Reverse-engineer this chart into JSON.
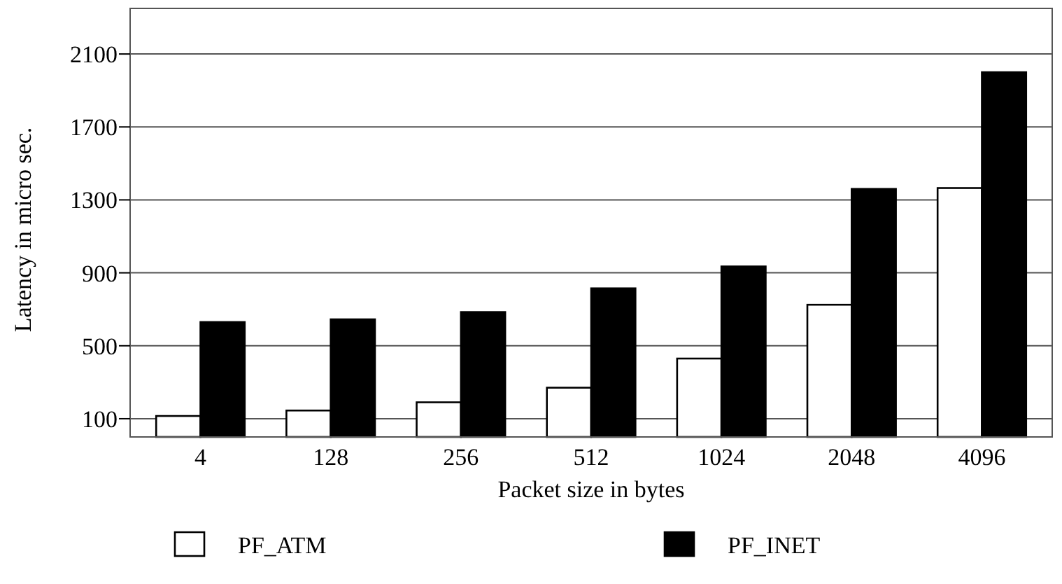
{
  "chart_data": {
    "type": "bar",
    "xlabel": "Packet  size in bytes",
    "ylabel": "Latency in micro sec.",
    "categories": [
      "4",
      "128",
      "256",
      "512",
      "1024",
      "2048",
      "4096"
    ],
    "series": [
      {
        "name": "PF_ATM",
        "color": "#ffffff",
        "values": [
          115,
          145,
          190,
          270,
          430,
          725,
          1365
        ]
      },
      {
        "name": "PF_INET",
        "color": "#000000",
        "values": [
          630,
          645,
          685,
          815,
          935,
          1360,
          2000
        ]
      }
    ],
    "ylim": [
      0,
      2350
    ],
    "yticks": [
      100,
      500,
      900,
      1300,
      1700,
      2100
    ],
    "grid": "y",
    "legend": "bottom"
  }
}
